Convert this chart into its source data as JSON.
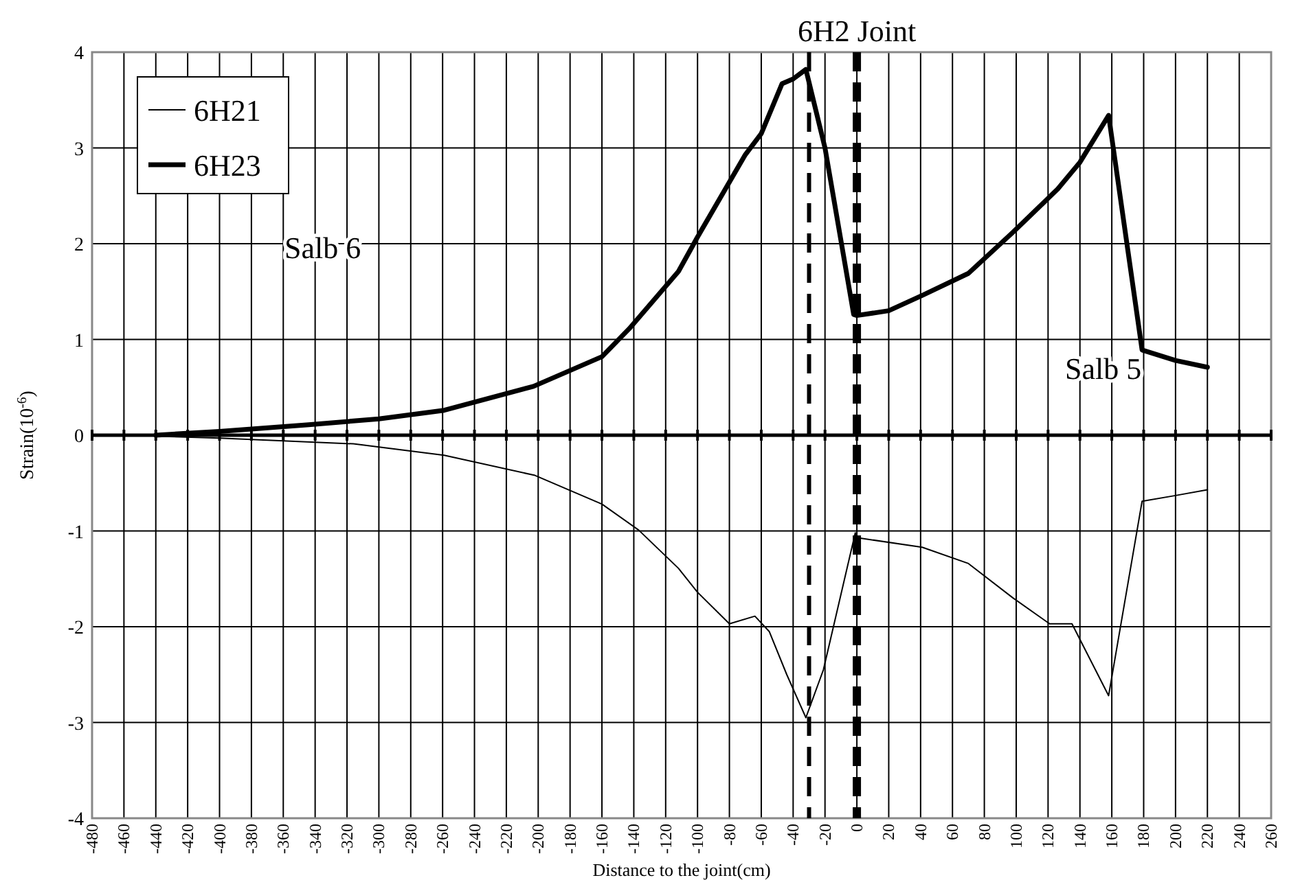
{
  "chart_data": {
    "type": "line",
    "xlabel": "Distance to the joint(cm)",
    "ylabel": "Strain(10$^{-6}$)",
    "xlim": [
      -480,
      260
    ],
    "xticks": [
      -480,
      -460,
      -440,
      -420,
      -400,
      -380,
      -360,
      -340,
      -320,
      -300,
      -280,
      -260,
      -240,
      -220,
      -200,
      -180,
      -160,
      -140,
      -120,
      -100,
      -80,
      -60,
      -40,
      -20,
      0,
      20,
      40,
      60,
      80,
      100,
      120,
      140,
      160,
      180,
      200,
      220,
      240,
      260
    ],
    "ylim": [
      -4,
      4
    ],
    "yticks": [
      -4,
      -3,
      -2,
      -1,
      0,
      1,
      2,
      3,
      4
    ],
    "grid": true,
    "legend": "top left",
    "line_style": "solid",
    "series": [
      {
        "name": "6H21",
        "color": "#000000",
        "x": [
          -440,
          -400,
          -360,
          -316,
          -259,
          -202,
          -160,
          -137,
          -112,
          -100,
          -80,
          -64,
          -55,
          -44,
          -32,
          -21,
          -1,
          0,
          41,
          70,
          98,
          121,
          135,
          158,
          179,
          200,
          220
        ],
        "values": [
          -0.01,
          -0.03,
          -0.06,
          -0.09,
          -0.21,
          -0.42,
          -0.72,
          -0.99,
          -1.39,
          -1.64,
          -1.97,
          -1.89,
          -2.05,
          -2.5,
          -2.95,
          -2.45,
          -1.02,
          -1.07,
          -1.17,
          -1.34,
          -1.7,
          -1.97,
          -1.97,
          -2.72,
          -0.69,
          -0.63,
          -0.57
        ]
      },
      {
        "name": "6H23",
        "color": "#000000",
        "x": [
          -440,
          -400,
          -344,
          -300,
          -259,
          -203,
          -160,
          -143,
          -112,
          -100,
          -70,
          -60,
          -47,
          -40,
          -32,
          -20,
          -2,
          0,
          20,
          41,
          70,
          98,
          126,
          140,
          158,
          179,
          200,
          220
        ],
        "values": [
          0,
          0.04,
          0.11,
          0.17,
          0.26,
          0.51,
          0.82,
          1.11,
          1.71,
          2.07,
          2.93,
          3.15,
          3.67,
          3.72,
          3.82,
          3.0,
          1.26,
          1.25,
          1.3,
          1.46,
          1.69,
          2.12,
          2.57,
          2.85,
          3.34,
          0.89,
          0.78,
          0.71
        ]
      }
    ],
    "ref_lines": [
      {
        "axis": "x",
        "value": -30,
        "line_style": "dashed"
      },
      {
        "axis": "x",
        "value": 0,
        "line_style": "dashed",
        "label": "6H2 Joint"
      }
    ],
    "annotations": [
      "Salb 6",
      "Salb 5"
    ]
  }
}
